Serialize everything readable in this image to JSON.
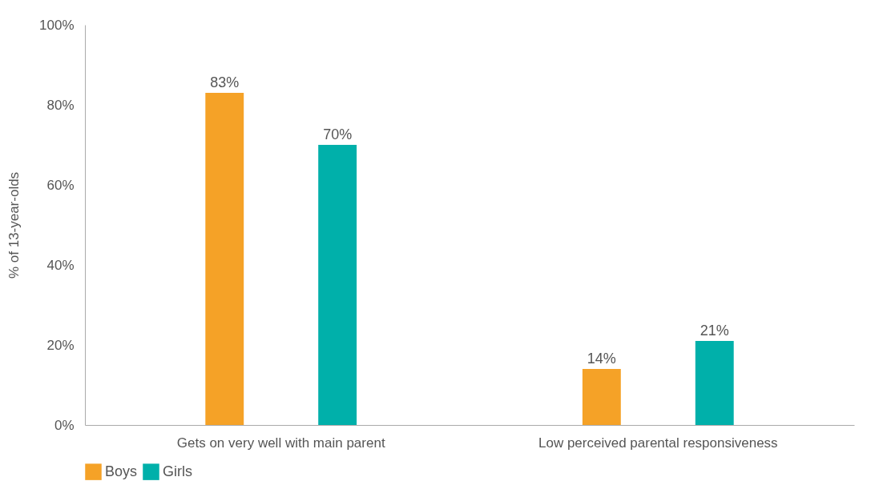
{
  "chart_data": {
    "type": "bar",
    "ylabel": "% of 13-year-olds",
    "categories": [
      "Gets on very well with main parent",
      "Low perceived parental responsiveness"
    ],
    "series": [
      {
        "name": "Boys",
        "color": "#f5a227",
        "values": [
          83,
          14
        ],
        "value_labels": [
          "83%",
          "14%"
        ]
      },
      {
        "name": "Girls",
        "color": "#00b0aa",
        "values": [
          70,
          21
        ],
        "value_labels": [
          "70%",
          "21%"
        ]
      }
    ],
    "ylim": [
      0,
      100
    ],
    "yticks": [
      {
        "value": 0,
        "label": "0%"
      },
      {
        "value": 20,
        "label": "20%"
      },
      {
        "value": 40,
        "label": "40%"
      },
      {
        "value": 60,
        "label": "60%"
      },
      {
        "value": 80,
        "label": "80%"
      },
      {
        "value": 100,
        "label": "100%"
      }
    ],
    "grid": false,
    "legend": "bottom"
  }
}
